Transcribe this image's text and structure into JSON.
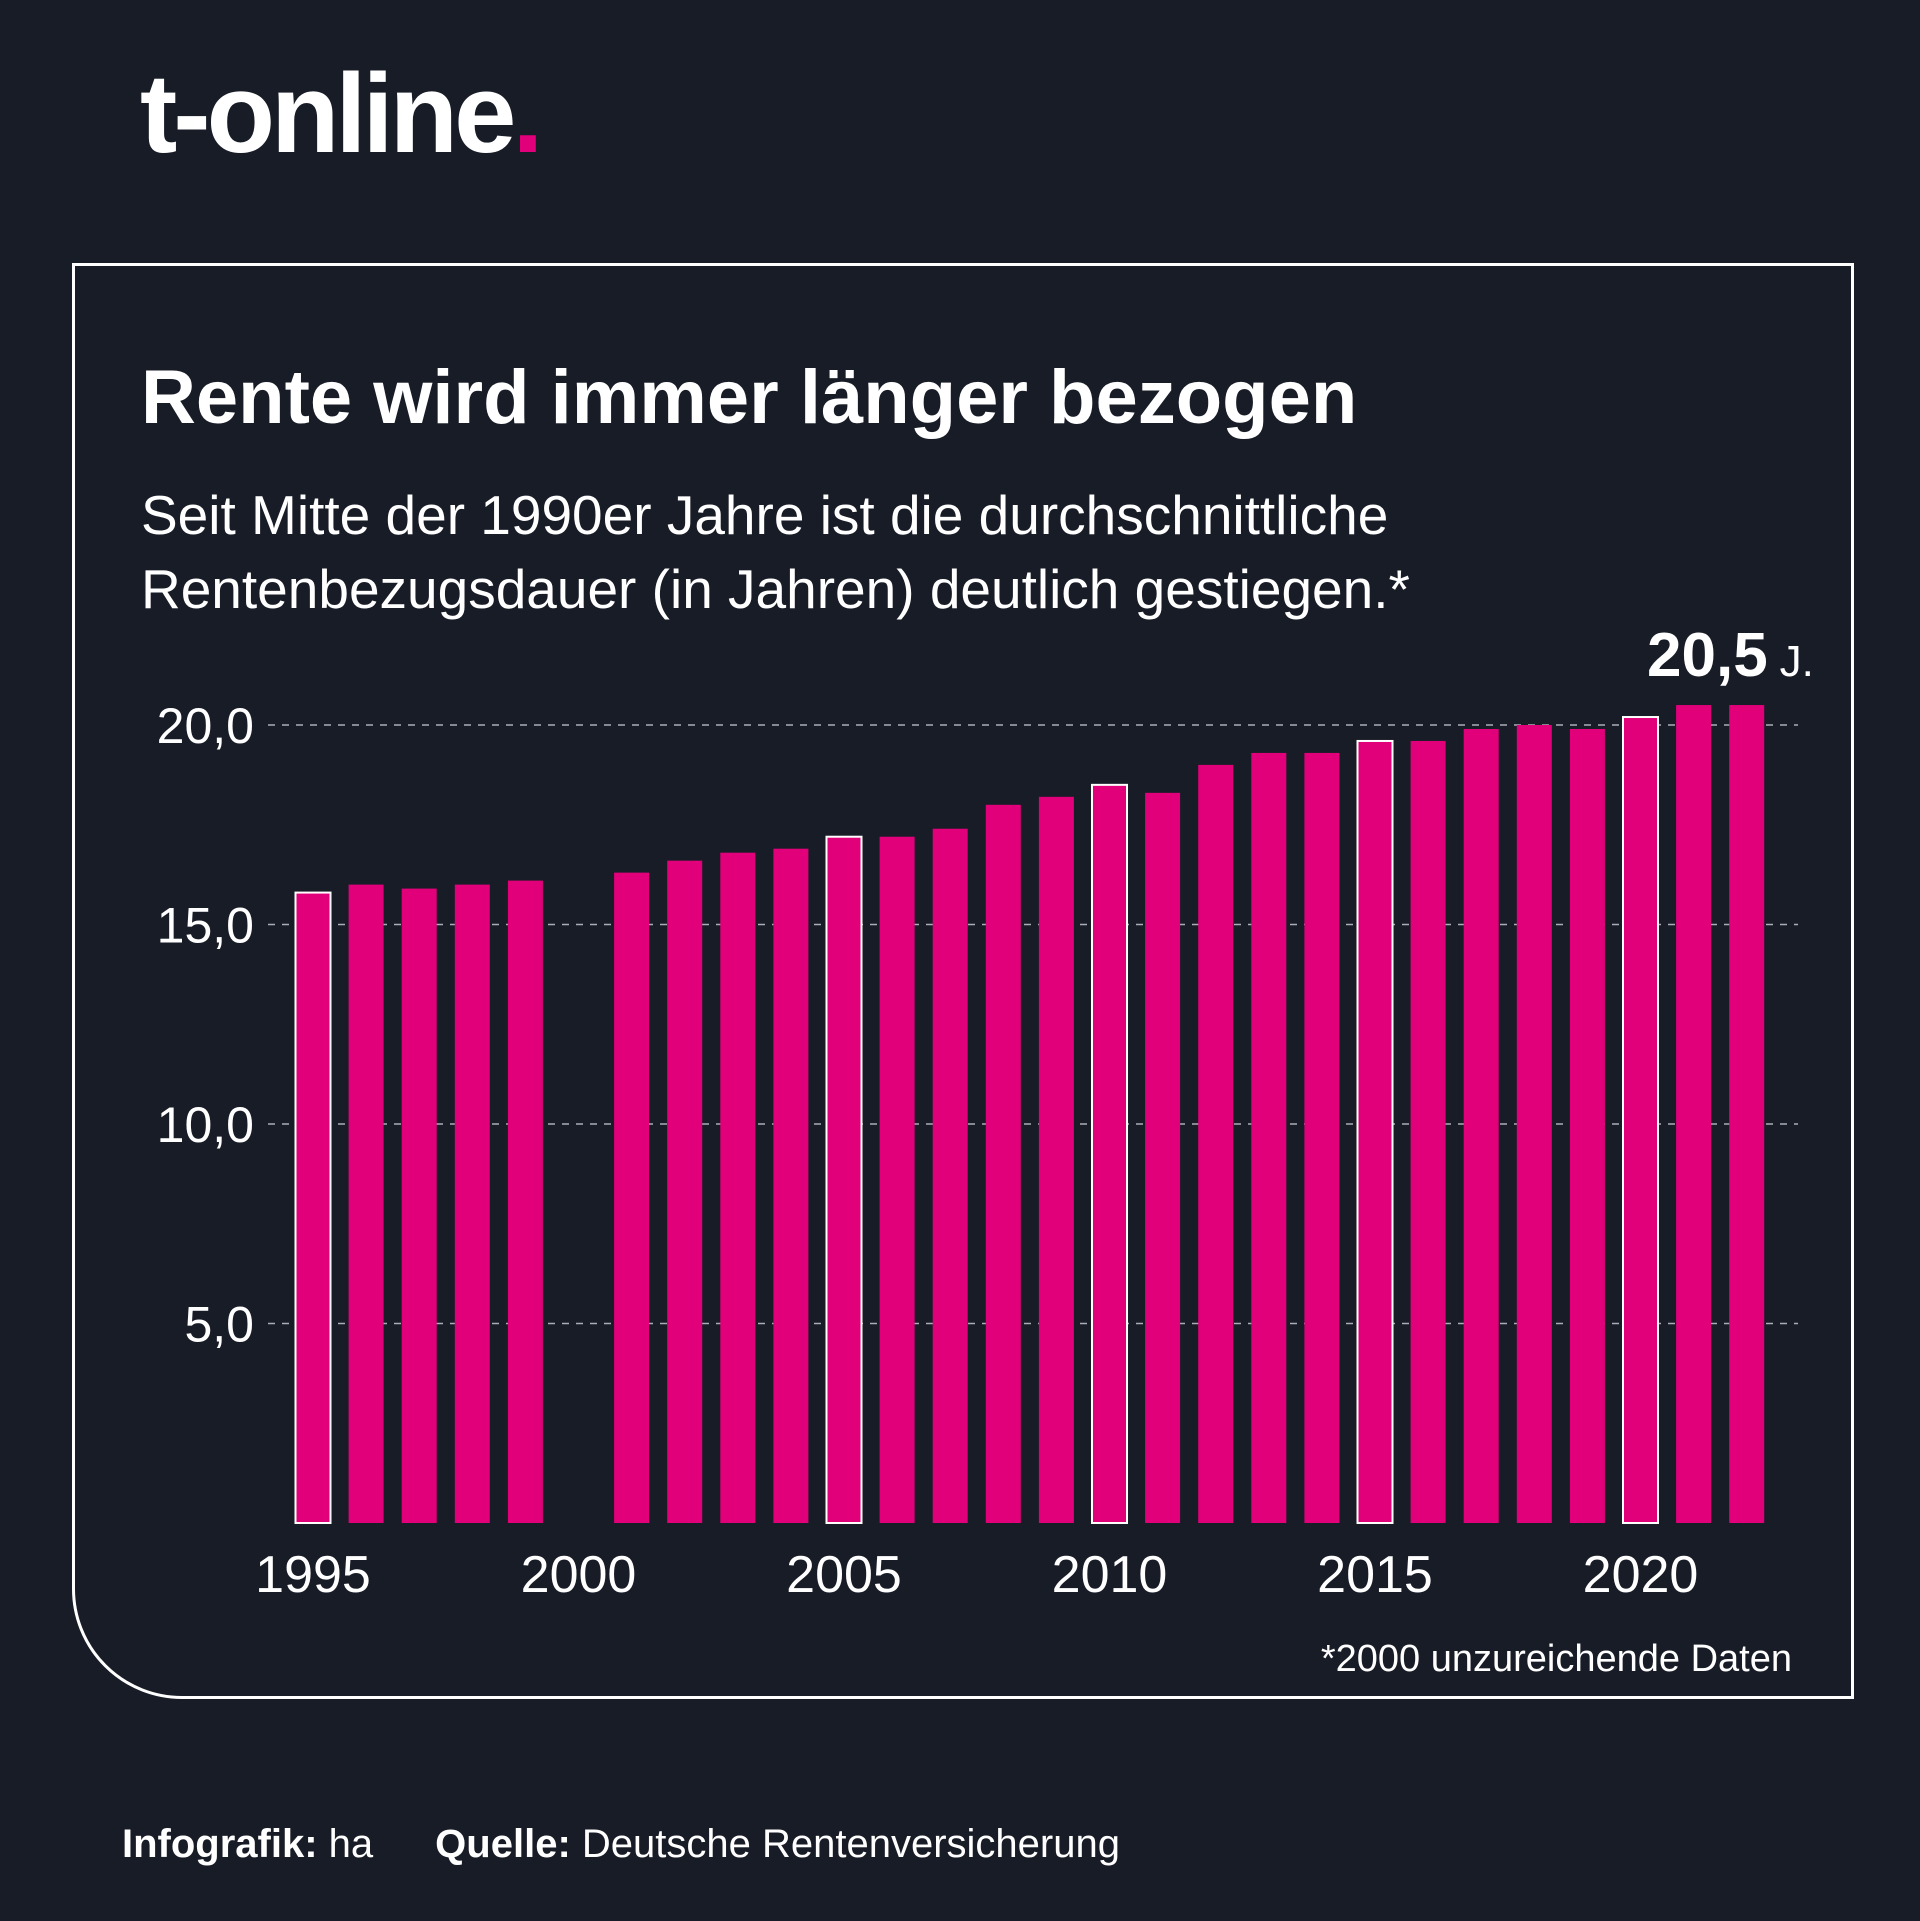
{
  "brand": {
    "name": "t-online",
    "dot": "."
  },
  "header": {
    "title": "Rente wird immer länger bezogen",
    "subtitle_line1": "Seit Mitte der 1990er Jahre ist die durchschnittliche",
    "subtitle_line2": "Rentenbezugsdauer (in Jahren) deutlich gestiegen.*"
  },
  "highlight": {
    "value": "20,5",
    "unit": "J."
  },
  "footnote": "*2000 unzureichende Daten",
  "credits": {
    "infografik_label": "Infografik:",
    "infografik_value": "ha",
    "quelle_label": "Quelle:",
    "quelle_value": "Deutsche Rentenversicherung"
  },
  "colors": {
    "background": "#181c27",
    "bar": "#e2007a",
    "text": "#ffffff",
    "outline": "#ffffff"
  },
  "chart_data": {
    "type": "bar",
    "x": [
      1995,
      1996,
      1997,
      1998,
      1999,
      2000,
      2001,
      2002,
      2003,
      2004,
      2005,
      2006,
      2007,
      2008,
      2009,
      2010,
      2011,
      2012,
      2013,
      2014,
      2015,
      2016,
      2017,
      2018,
      2019,
      2020,
      2021,
      2022
    ],
    "values": [
      15.8,
      16.0,
      15.9,
      16.0,
      16.1,
      null,
      16.3,
      16.6,
      16.8,
      16.9,
      17.2,
      17.2,
      17.4,
      18.0,
      18.2,
      18.5,
      18.3,
      19.0,
      19.3,
      19.3,
      19.6,
      19.6,
      19.9,
      20.0,
      19.9,
      20.2,
      20.5,
      20.5
    ],
    "outlined_years": [
      1995,
      2005,
      2010,
      2015,
      2020
    ],
    "xticks": [
      1995,
      2000,
      2005,
      2010,
      2015,
      2020
    ],
    "yticks": [
      5,
      10,
      15,
      20
    ],
    "ytick_labels": [
      "5,0",
      "10,0",
      "15,0",
      "20,0"
    ],
    "ylim": [
      0,
      21
    ],
    "grid": "horizontal dashed",
    "legend": "none"
  }
}
